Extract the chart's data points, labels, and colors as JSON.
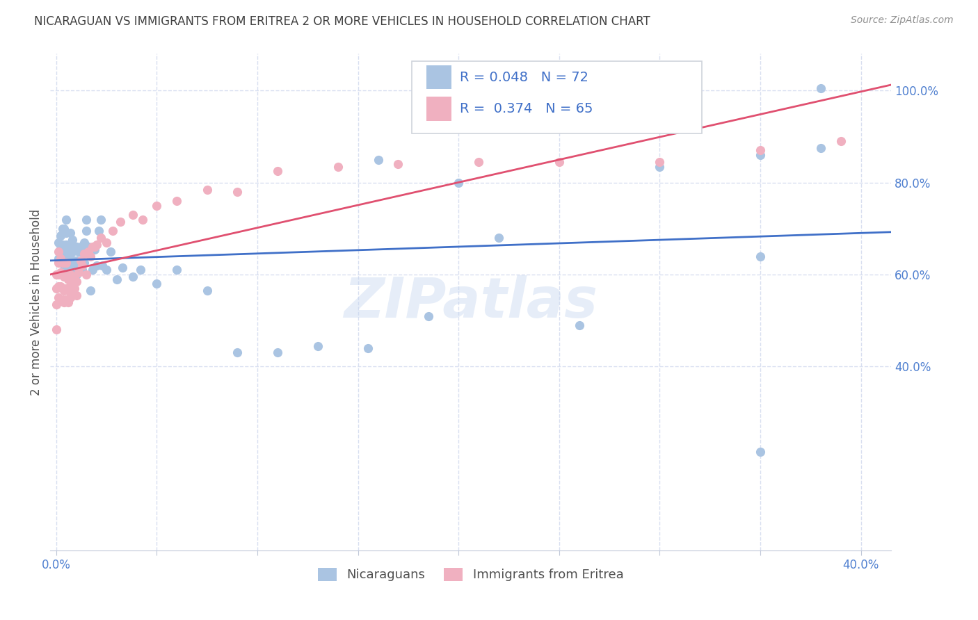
{
  "title": "NICARAGUAN VS IMMIGRANTS FROM ERITREA 2 OR MORE VEHICLES IN HOUSEHOLD CORRELATION CHART",
  "source": "Source: ZipAtlas.com",
  "ylabel": "2 or more Vehicles in Household",
  "blue_R": 0.048,
  "blue_N": 72,
  "pink_R": 0.374,
  "pink_N": 65,
  "blue_color": "#aac4e2",
  "blue_line_color": "#4070c8",
  "pink_color": "#f0b0c0",
  "pink_line_color": "#e05070",
  "axis_tick_color": "#5080d0",
  "grid_color": "#d8dff0",
  "watermark": "ZIPatlas",
  "xlim_min": -0.003,
  "xlim_max": 0.415,
  "ylim_min": 0.0,
  "ylim_max": 1.08,
  "xtick_vals": [
    0.0,
    0.05,
    0.1,
    0.15,
    0.2,
    0.25,
    0.3,
    0.35,
    0.4
  ],
  "xtick_labels": [
    "0.0%",
    "",
    "",
    "",
    "",
    "",
    "",
    "",
    "40.0%"
  ],
  "ytick_vals": [
    0.4,
    0.6,
    0.8,
    1.0
  ],
  "ytick_labels": [
    "40.0%",
    "60.0%",
    "80.0%",
    "100.0%"
  ],
  "blue_x": [
    0.001,
    0.001,
    0.002,
    0.002,
    0.003,
    0.003,
    0.003,
    0.004,
    0.004,
    0.004,
    0.005,
    0.005,
    0.005,
    0.005,
    0.006,
    0.006,
    0.006,
    0.007,
    0.007,
    0.007,
    0.008,
    0.008,
    0.008,
    0.008,
    0.009,
    0.009,
    0.009,
    0.01,
    0.01,
    0.01,
    0.011,
    0.011,
    0.012,
    0.012,
    0.013,
    0.013,
    0.014,
    0.014,
    0.015,
    0.015,
    0.016,
    0.017,
    0.018,
    0.019,
    0.02,
    0.021,
    0.022,
    0.023,
    0.025,
    0.027,
    0.03,
    0.033,
    0.038,
    0.042,
    0.05,
    0.06,
    0.075,
    0.09,
    0.11,
    0.13,
    0.155,
    0.185,
    0.22,
    0.26,
    0.3,
    0.35,
    0.38,
    0.38,
    0.16,
    0.2,
    0.35,
    0.35
  ],
  "blue_y": [
    0.635,
    0.67,
    0.655,
    0.685,
    0.63,
    0.665,
    0.7,
    0.62,
    0.655,
    0.7,
    0.64,
    0.665,
    0.69,
    0.72,
    0.6,
    0.635,
    0.665,
    0.615,
    0.645,
    0.69,
    0.59,
    0.625,
    0.65,
    0.675,
    0.6,
    0.63,
    0.66,
    0.6,
    0.63,
    0.66,
    0.615,
    0.65,
    0.615,
    0.66,
    0.61,
    0.65,
    0.625,
    0.67,
    0.695,
    0.72,
    0.66,
    0.565,
    0.61,
    0.655,
    0.62,
    0.695,
    0.72,
    0.62,
    0.61,
    0.65,
    0.59,
    0.615,
    0.595,
    0.61,
    0.58,
    0.61,
    0.565,
    0.43,
    0.43,
    0.445,
    0.44,
    0.51,
    0.68,
    0.49,
    0.835,
    0.64,
    0.875,
    1.005,
    0.85,
    0.8,
    0.86,
    0.215
  ],
  "pink_x": [
    0.0,
    0.0,
    0.0,
    0.001,
    0.001,
    0.001,
    0.001,
    0.001,
    0.002,
    0.002,
    0.002,
    0.002,
    0.003,
    0.003,
    0.003,
    0.003,
    0.004,
    0.004,
    0.004,
    0.004,
    0.005,
    0.005,
    0.005,
    0.005,
    0.006,
    0.006,
    0.006,
    0.007,
    0.007,
    0.007,
    0.008,
    0.008,
    0.009,
    0.009,
    0.01,
    0.01,
    0.011,
    0.012,
    0.013,
    0.014,
    0.015,
    0.016,
    0.017,
    0.018,
    0.019,
    0.02,
    0.022,
    0.025,
    0.028,
    0.032,
    0.038,
    0.043,
    0.05,
    0.06,
    0.075,
    0.09,
    0.11,
    0.14,
    0.17,
    0.21,
    0.25,
    0.3,
    0.35,
    0.39,
    0.0
  ],
  "pink_y": [
    0.535,
    0.57,
    0.6,
    0.55,
    0.575,
    0.6,
    0.625,
    0.65,
    0.545,
    0.575,
    0.605,
    0.635,
    0.545,
    0.57,
    0.6,
    0.625,
    0.54,
    0.565,
    0.595,
    0.625,
    0.545,
    0.57,
    0.595,
    0.625,
    0.54,
    0.565,
    0.59,
    0.55,
    0.575,
    0.6,
    0.555,
    0.58,
    0.57,
    0.595,
    0.555,
    0.585,
    0.605,
    0.63,
    0.62,
    0.645,
    0.6,
    0.65,
    0.64,
    0.66,
    0.66,
    0.665,
    0.68,
    0.67,
    0.695,
    0.715,
    0.73,
    0.72,
    0.75,
    0.76,
    0.785,
    0.78,
    0.825,
    0.835,
    0.84,
    0.845,
    0.845,
    0.845,
    0.87,
    0.89,
    0.48
  ],
  "legend_blue_text": "R = 0.048   N = 72",
  "legend_pink_text": "R =  0.374   N = 65"
}
